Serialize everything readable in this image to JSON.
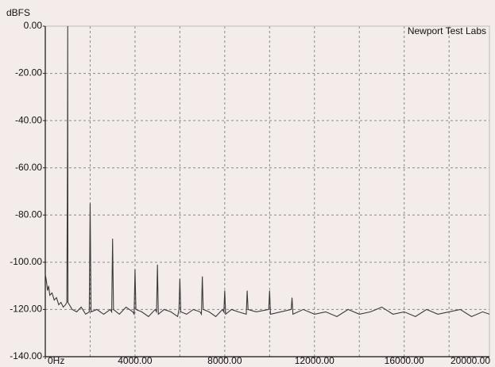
{
  "chart_data": {
    "type": "line",
    "y_label": "dBFS",
    "annotation": "Newport Test Labs",
    "xlim": [
      0,
      19800
    ],
    "ylim": [
      -140,
      0
    ],
    "xticks": [
      {
        "value": 0,
        "label": "0Hz"
      },
      {
        "value": 4000,
        "label": "4000.00"
      },
      {
        "value": 8000,
        "label": "8000.00"
      },
      {
        "value": 12000,
        "label": "12000.00"
      },
      {
        "value": 16000,
        "label": "16000.00"
      },
      {
        "value": 20000,
        "label": "20000.00"
      }
    ],
    "yticks": [
      {
        "value": 0,
        "label": "0.00"
      },
      {
        "value": -20,
        "label": "-20.00"
      },
      {
        "value": -40,
        "label": "-40.00"
      },
      {
        "value": -60,
        "label": "-60.00"
      },
      {
        "value": -80,
        "label": "-80.00"
      },
      {
        "value": -100,
        "label": "-100.00"
      },
      {
        "value": -120,
        "label": "-120.00"
      },
      {
        "value": -140,
        "label": "-140.00"
      }
    ],
    "grid": true,
    "series": [
      {
        "color": "#3a3a3a",
        "x": [
          0,
          50,
          100,
          150,
          200,
          300,
          400,
          500,
          600,
          700,
          800,
          900,
          960,
          990,
          1000,
          1010,
          1200,
          1400,
          1600,
          1800,
          1960,
          2000,
          2040,
          2300,
          2600,
          2900,
          2960,
          3000,
          3040,
          3300,
          3600,
          3900,
          3960,
          4000,
          4040,
          4300,
          4600,
          4900,
          4960,
          5000,
          5040,
          5300,
          5600,
          5900,
          5960,
          6000,
          6040,
          6300,
          6600,
          6900,
          6960,
          7000,
          7040,
          7300,
          7600,
          7900,
          7960,
          8000,
          8040,
          8300,
          8600,
          8960,
          9000,
          9040,
          9400,
          9960,
          10000,
          10040,
          10500,
          10960,
          11000,
          11040,
          11500,
          12000,
          12500,
          13000,
          13500,
          14000,
          14500,
          15000,
          15500,
          16000,
          16500,
          17000,
          17500,
          18000,
          18500,
          19000,
          19500,
          19800
        ],
        "values": [
          -105,
          -108,
          -112,
          -110,
          -114,
          -113,
          -116,
          -115,
          -118,
          -117,
          -119,
          -118,
          -117,
          -52,
          0,
          -117,
          -120,
          -121,
          -119,
          -122,
          -121,
          -75,
          -121,
          -120,
          -122,
          -120,
          -121,
          -90,
          -120,
          -122,
          -119,
          -121,
          -122,
          -103,
          -120,
          -121,
          -123,
          -120,
          -121,
          -101,
          -122,
          -120,
          -121,
          -123,
          -120,
          -107,
          -121,
          -122,
          -120,
          -121,
          -122,
          -106,
          -120,
          -121,
          -123,
          -120,
          -121,
          -112,
          -122,
          -120,
          -121,
          -122,
          -112,
          -120,
          -121,
          -120,
          -112,
          -122,
          -121,
          -120,
          -115,
          -122,
          -120,
          -122,
          -121,
          -123,
          -120,
          -122,
          -121,
          -119,
          -122,
          -121,
          -123,
          -120,
          -122,
          -121,
          -120,
          -123,
          -121,
          -122
        ]
      }
    ]
  }
}
